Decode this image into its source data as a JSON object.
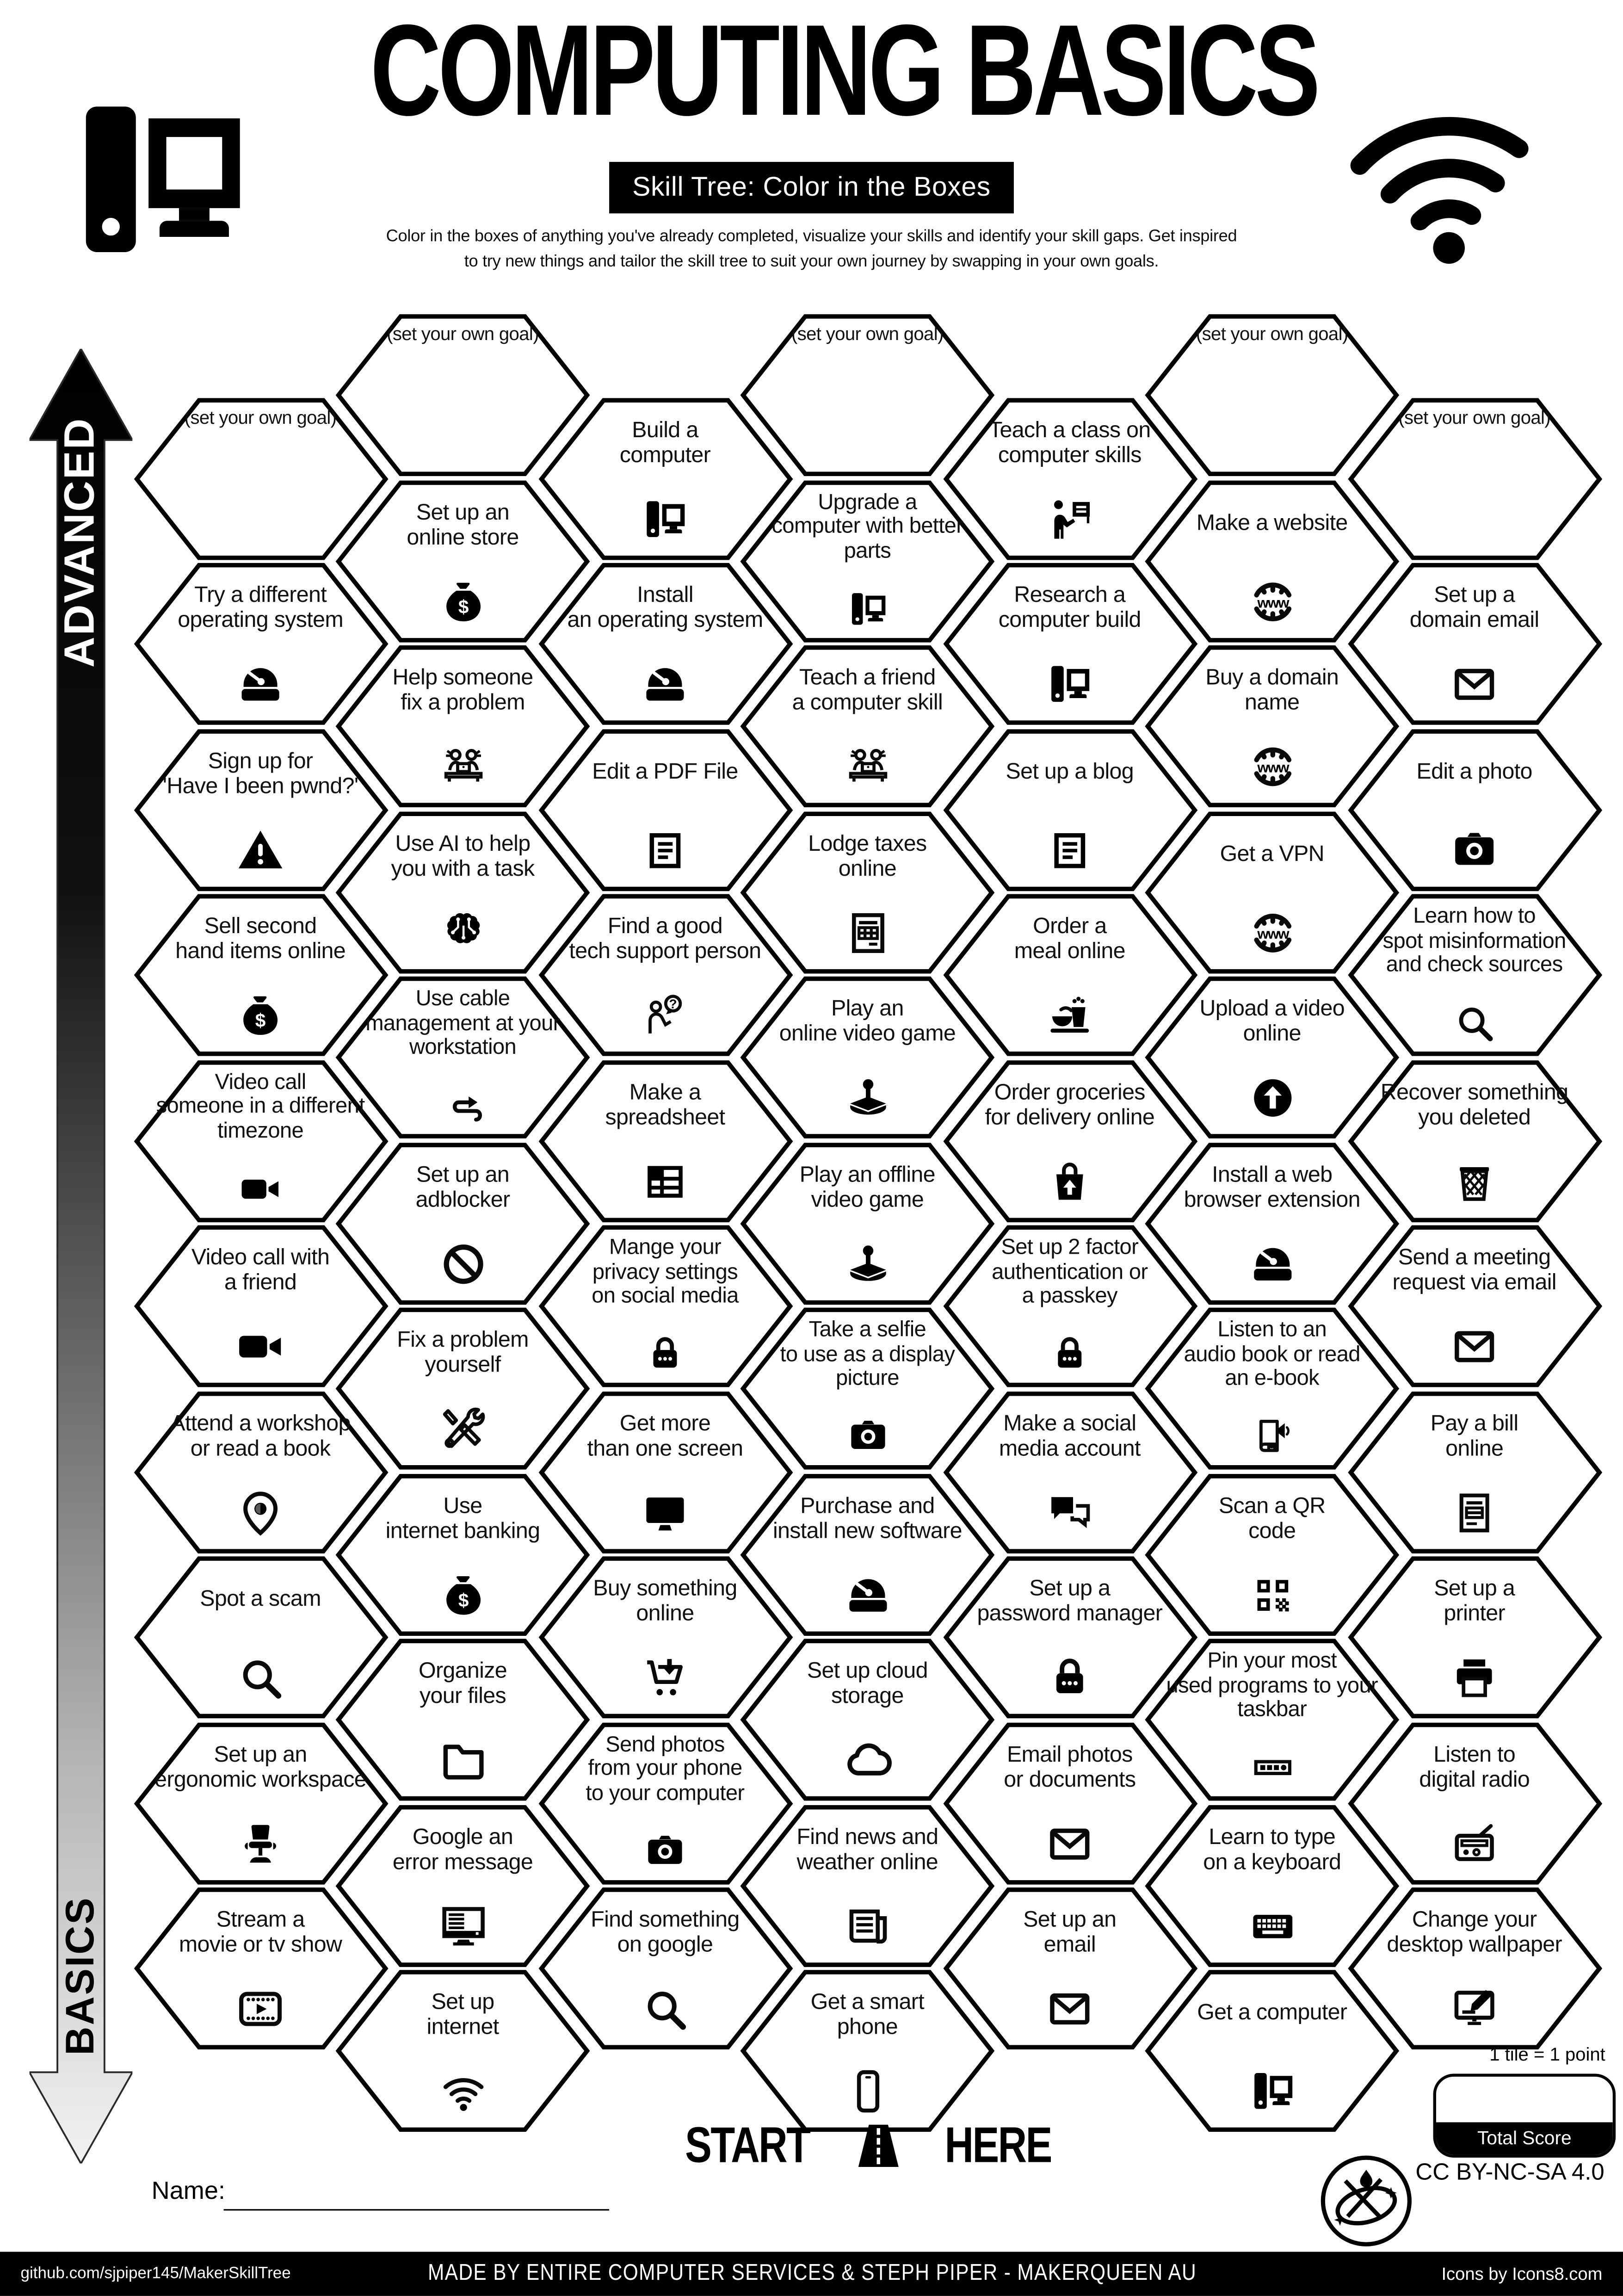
{
  "header": {
    "title": "COMPUTING BASICS",
    "subtitle": "Skill Tree: Color in the Boxes",
    "description": "Color in the boxes of anything you've already completed, visualize your skills and identify your skill gaps.  Get inspired\nto try new things and tailor the skill tree to suit your own journey by swapping in your own goals.",
    "logo_left": "computer-logo-icon",
    "logo_right": "wifi-logo-icon"
  },
  "axis": {
    "top_label": "ADVANCED",
    "bottom_label": "BASICS"
  },
  "start_marker": {
    "left": "START",
    "right": "HERE",
    "icon": "road-icon"
  },
  "name_field": {
    "label": "Name:"
  },
  "scoring": {
    "tile_points": "1 tile = 1 point",
    "total_score_label": "Total Score"
  },
  "license": "CC BY-NC-SA 4.0",
  "footer": {
    "left": "github.com/sjpiper145/MakerSkillTree",
    "center": "MADE BY ENTIRE COMPUTER SERVICES & STEPH PIPER - MAKERQUEEN AU",
    "right": "Icons by Icons8.com"
  },
  "colors": {
    "ink": "#000000",
    "paper": "#ffffff"
  },
  "tiles": [
    {
      "col": 1,
      "slot": 0,
      "label": "(set your own goal)",
      "icon": null
    },
    {
      "col": 1,
      "slot": 1,
      "label": "Try a different\noperating system",
      "icon": "install-icon"
    },
    {
      "col": 1,
      "slot": 2,
      "label": "Sign up for\n'Have I been pwnd?'",
      "icon": "warning-icon"
    },
    {
      "col": 1,
      "slot": 3,
      "label": "Sell second\nhand items online",
      "icon": "money-bag-icon"
    },
    {
      "col": 1,
      "slot": 4,
      "label": "Video call\nsomeone in a different\ntimezone",
      "icon": "video-camera-icon"
    },
    {
      "col": 1,
      "slot": 5,
      "label": "Video call with\na friend",
      "icon": "video-camera-icon"
    },
    {
      "col": 1,
      "slot": 6,
      "label": "Attend a workshop\nor read a book",
      "icon": "location-pin-icon"
    },
    {
      "col": 1,
      "slot": 7,
      "label": "Spot a scam",
      "icon": "magnifier-icon"
    },
    {
      "col": 1,
      "slot": 8,
      "label": "Set up an\nergonomic workspace",
      "icon": "office-chair-icon"
    },
    {
      "col": 1,
      "slot": 9,
      "label": "Stream a\nmovie or tv show",
      "icon": "film-play-icon"
    },
    {
      "col": 2,
      "slot": 0,
      "label": "(set your own goal)",
      "icon": null
    },
    {
      "col": 2,
      "slot": 1,
      "label": "Set up an\nonline store",
      "icon": "money-bag-icon"
    },
    {
      "col": 2,
      "slot": 2,
      "label": "Help someone\nfix a problem",
      "icon": "people-desk-icon"
    },
    {
      "col": 2,
      "slot": 3,
      "label": "Use AI to help\nyou with a task",
      "icon": "ai-brain-icon"
    },
    {
      "col": 2,
      "slot": 4,
      "label": "Use cable\nmanagement at your\nworkstation",
      "icon": "cable-icon"
    },
    {
      "col": 2,
      "slot": 5,
      "label": "Set up an\nadblocker",
      "icon": "no-sign-icon"
    },
    {
      "col": 2,
      "slot": 6,
      "label": "Fix a problem\nyourself",
      "icon": "tools-icon"
    },
    {
      "col": 2,
      "slot": 7,
      "label": "Use\ninternet banking",
      "icon": "money-bag-icon"
    },
    {
      "col": 2,
      "slot": 8,
      "label": "Organize\nyour files",
      "icon": "folder-icon"
    },
    {
      "col": 2,
      "slot": 9,
      "label": "Google an\nerror message",
      "icon": "monitor-error-icon"
    },
    {
      "col": 2,
      "slot": 10,
      "label": "Set up\ninternet",
      "icon": "wifi-icon"
    },
    {
      "col": 3,
      "slot": 0,
      "label": "Build a\ncomputer",
      "icon": "desktop-computer-icon"
    },
    {
      "col": 3,
      "slot": 1,
      "label": "Install\nan operating system",
      "icon": "install-icon"
    },
    {
      "col": 3,
      "slot": 2,
      "label": "Edit a PDF File",
      "icon": "document-lines-icon"
    },
    {
      "col": 3,
      "slot": 3,
      "label": "Find a good\ntech support person",
      "icon": "person-question-icon"
    },
    {
      "col": 3,
      "slot": 4,
      "label": "Make a\nspreadsheet",
      "icon": "spreadsheet-icon"
    },
    {
      "col": 3,
      "slot": 5,
      "label": "Mange your\nprivacy settings\non social media",
      "icon": "padlock-icon"
    },
    {
      "col": 3,
      "slot": 6,
      "label": "Get more\nthan one screen",
      "icon": "monitor-icon"
    },
    {
      "col": 3,
      "slot": 7,
      "label": "Buy something\nonline",
      "icon": "shopping-cart-icon"
    },
    {
      "col": 3,
      "slot": 8,
      "label": "Send photos\nfrom your phone\nto your computer",
      "icon": "camera-icon"
    },
    {
      "col": 3,
      "slot": 9,
      "label": "Find something\non google",
      "icon": "magnifier-icon"
    },
    {
      "col": 4,
      "slot": 0,
      "label": "(set your own goal)",
      "icon": null
    },
    {
      "col": 4,
      "slot": 1,
      "label": "Upgrade a\ncomputer with better\nparts",
      "icon": "desktop-computer-icon"
    },
    {
      "col": 4,
      "slot": 2,
      "label": "Teach a friend\na computer skill",
      "icon": "people-desk-icon"
    },
    {
      "col": 4,
      "slot": 3,
      "label": "Lodge taxes\nonline",
      "icon": "tax-form-icon"
    },
    {
      "col": 4,
      "slot": 4,
      "label": "Play an\nonline video game",
      "icon": "joystick-icon"
    },
    {
      "col": 4,
      "slot": 5,
      "label": "Play an offline\nvideo game",
      "icon": "joystick-icon"
    },
    {
      "col": 4,
      "slot": 6,
      "label": "Take a selfie\nto use as a display\npicture",
      "icon": "camera-icon"
    },
    {
      "col": 4,
      "slot": 7,
      "label": "Purchase and\ninstall new software",
      "icon": "install-icon"
    },
    {
      "col": 4,
      "slot": 8,
      "label": "Set up cloud\nstorage",
      "icon": "cloud-icon"
    },
    {
      "col": 4,
      "slot": 9,
      "label": "Find news and\nweather online",
      "icon": "newspaper-icon"
    },
    {
      "col": 4,
      "slot": 10,
      "label": "Get a smart\nphone",
      "icon": "smartphone-icon"
    },
    {
      "col": 5,
      "slot": 0,
      "label": "Teach a class on\ncomputer skills",
      "icon": "teacher-icon"
    },
    {
      "col": 5,
      "slot": 1,
      "label": "Research a\ncomputer build",
      "icon": "desktop-computer-icon"
    },
    {
      "col": 5,
      "slot": 2,
      "label": "Set up a blog",
      "icon": "document-lines-icon"
    },
    {
      "col": 5,
      "slot": 3,
      "label": "Order a\nmeal online",
      "icon": "meal-icon"
    },
    {
      "col": 5,
      "slot": 4,
      "label": "Order groceries\nfor delivery online",
      "icon": "grocery-bag-icon"
    },
    {
      "col": 5,
      "slot": 5,
      "label": "Set up 2 factor\nauthentication or\na passkey",
      "icon": "padlock-icon"
    },
    {
      "col": 5,
      "slot": 6,
      "label": "Make a social\nmedia account",
      "icon": "chat-bubbles-icon"
    },
    {
      "col": 5,
      "slot": 7,
      "label": "Set up a\npassword manager",
      "icon": "padlock-icon"
    },
    {
      "col": 5,
      "slot": 8,
      "label": "Email photos\nor documents",
      "icon": "envelope-icon"
    },
    {
      "col": 5,
      "slot": 9,
      "label": "Set up an\nemail",
      "icon": "envelope-icon"
    },
    {
      "col": 6,
      "slot": 0,
      "label": "(set your own goal)",
      "icon": null
    },
    {
      "col": 6,
      "slot": 1,
      "label": "Make a website",
      "icon": "www-globe-icon"
    },
    {
      "col": 6,
      "slot": 2,
      "label": "Buy a domain\nname",
      "icon": "www-globe-icon"
    },
    {
      "col": 6,
      "slot": 3,
      "label": "Get a VPN",
      "icon": "www-globe-icon"
    },
    {
      "col": 6,
      "slot": 4,
      "label": "Upload a video\nonline",
      "icon": "upload-icon"
    },
    {
      "col": 6,
      "slot": 5,
      "label": "Install a web\nbrowser extension",
      "icon": "install-icon"
    },
    {
      "col": 6,
      "slot": 6,
      "label": "Listen to an\naudio book or read\nan e-book",
      "icon": "audiobook-icon"
    },
    {
      "col": 6,
      "slot": 7,
      "label": "Scan a QR\ncode",
      "icon": "qr-code-icon"
    },
    {
      "col": 6,
      "slot": 8,
      "label": "Pin your most\nused programs to your\ntaskbar",
      "icon": "taskbar-icon"
    },
    {
      "col": 6,
      "slot": 9,
      "label": "Learn to type\non a keyboard",
      "icon": "keyboard-icon"
    },
    {
      "col": 6,
      "slot": 10,
      "label": "Get a computer",
      "icon": "desktop-computer-icon"
    },
    {
      "col": 7,
      "slot": 0,
      "label": "(set your own goal)",
      "icon": null
    },
    {
      "col": 7,
      "slot": 1,
      "label": "Set up a\ndomain email",
      "icon": "envelope-icon"
    },
    {
      "col": 7,
      "slot": 2,
      "label": "Edit a photo",
      "icon": "camera-icon"
    },
    {
      "col": 7,
      "slot": 3,
      "label": "Learn how to\nspot misinformation\nand check sources",
      "icon": "magnifier-icon"
    },
    {
      "col": 7,
      "slot": 4,
      "label": "Recover something\nyou deleted",
      "icon": "trash-basket-icon"
    },
    {
      "col": 7,
      "slot": 5,
      "label": "Send a meeting\nrequest via email",
      "icon": "envelope-icon"
    },
    {
      "col": 7,
      "slot": 6,
      "label": "Pay a bill\nonline",
      "icon": "invoice-icon"
    },
    {
      "col": 7,
      "slot": 7,
      "label": "Set up a\nprinter",
      "icon": "printer-icon"
    },
    {
      "col": 7,
      "slot": 8,
      "label": "Listen to\ndigital radio",
      "icon": "radio-icon"
    },
    {
      "col": 7,
      "slot": 9,
      "label": "Change your\ndesktop wallpaper",
      "icon": "wallpaper-icon"
    }
  ]
}
